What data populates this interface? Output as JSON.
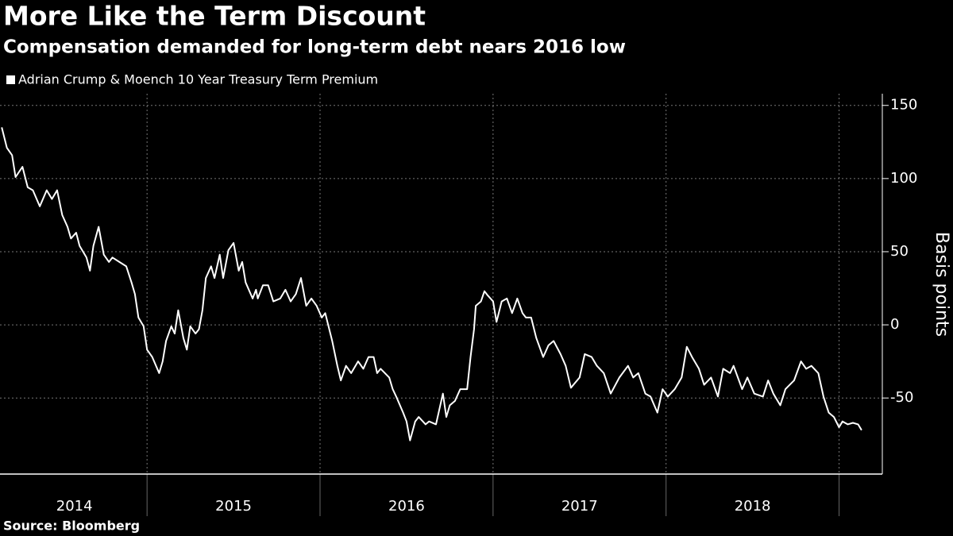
{
  "chart_data": {
    "type": "line",
    "title": "More Like the Term Discount",
    "subtitle": "Compensation demanded for long-term debt nears 2016 low",
    "y_axis_label": "Basis points",
    "source": "Source: Bloomberg",
    "series": [
      {
        "name": "Adrian Crump & Moench 10 Year Treasury Term Premium",
        "color": "#ffffff",
        "values": [
          135,
          121,
          116,
          101,
          108,
          94,
          92,
          81,
          92,
          86,
          92,
          75,
          67,
          59,
          63,
          54,
          46,
          37,
          54,
          67,
          48,
          43,
          46,
          43,
          40,
          29,
          21,
          5,
          -1,
          -17,
          -22,
          -33,
          -25,
          -11,
          -1,
          -6,
          10,
          -9,
          -17,
          -1,
          -6,
          -3,
          10,
          32,
          40,
          32,
          48,
          32,
          51,
          56,
          37,
          43,
          29,
          18,
          24,
          18,
          27,
          27,
          16,
          18,
          24,
          16,
          21,
          32,
          13,
          18,
          13,
          5,
          8,
          -11,
          -28,
          -38,
          -28,
          -33,
          -25,
          -30,
          -22,
          -22,
          -33,
          -30,
          -36,
          -44,
          -49,
          -60,
          -66,
          -79,
          -66,
          -63,
          -68,
          -66,
          -68,
          -47,
          -63,
          -55,
          -52,
          -44,
          -44,
          -22,
          -3,
          13,
          16,
          23,
          20,
          16,
          2,
          16,
          18,
          8,
          18,
          8,
          5,
          5,
          -9,
          -22,
          -14,
          -11,
          -20,
          -28,
          -43,
          -36,
          -20,
          -22,
          -28,
          -33,
          -47,
          -36,
          -28,
          -36,
          -33,
          -47,
          -49,
          -60,
          -44,
          -49,
          -44,
          -36,
          -15,
          -22,
          -30,
          -41,
          -36,
          -49,
          -30,
          -33,
          -28,
          -44,
          -36,
          -47,
          -49,
          -38,
          -47,
          -55,
          -44,
          -38,
          -25,
          -30,
          -28,
          -33,
          -49,
          -60,
          -63,
          -70,
          -66,
          -68,
          -67,
          -68,
          -72
        ]
      }
    ],
    "x": [
      2014.16,
      2014.19,
      2014.22,
      2014.24,
      2014.28,
      2014.31,
      2014.34,
      2014.38,
      2014.42,
      2014.45,
      2014.48,
      2014.51,
      2014.54,
      2014.56,
      2014.59,
      2014.61,
      2014.65,
      2014.67,
      2014.69,
      2014.72,
      2014.75,
      2014.78,
      2014.8,
      2014.84,
      2014.88,
      2014.91,
      2014.93,
      2014.95,
      2014.98,
      2015.0,
      2015.03,
      2015.07,
      2015.09,
      2015.11,
      2015.14,
      2015.16,
      2015.18,
      2015.21,
      2015.23,
      2015.25,
      2015.28,
      2015.3,
      2015.32,
      2015.34,
      2015.37,
      2015.39,
      2015.42,
      2015.44,
      2015.47,
      2015.5,
      2015.53,
      2015.55,
      2015.57,
      2015.61,
      2015.63,
      2015.64,
      2015.67,
      2015.7,
      2015.73,
      2015.77,
      2015.8,
      2015.83,
      2015.86,
      2015.89,
      2015.92,
      2015.95,
      2015.98,
      2016.01,
      2016.03,
      2016.07,
      2016.1,
      2016.12,
      2016.15,
      2016.18,
      2016.22,
      2016.25,
      2016.28,
      2016.31,
      2016.33,
      2016.35,
      2016.4,
      2016.42,
      2016.44,
      2016.48,
      2016.5,
      2016.52,
      2016.55,
      2016.57,
      2016.61,
      2016.63,
      2016.67,
      2016.71,
      2016.73,
      2016.75,
      2016.78,
      2016.81,
      2016.85,
      2016.87,
      2016.89,
      2016.9,
      2016.93,
      2016.95,
      2016.97,
      2017.0,
      2017.02,
      2017.05,
      2017.08,
      2017.11,
      2017.14,
      2017.17,
      2017.19,
      2017.22,
      2017.25,
      2017.29,
      2017.32,
      2017.35,
      2017.39,
      2017.42,
      2017.45,
      2017.5,
      2017.53,
      2017.57,
      2017.6,
      2017.64,
      2017.68,
      2017.73,
      2017.78,
      2017.81,
      2017.84,
      2017.88,
      2017.91,
      2017.95,
      2017.98,
      2018.01,
      2018.05,
      2018.09,
      2018.12,
      2018.15,
      2018.19,
      2018.22,
      2018.26,
      2018.3,
      2018.33,
      2018.37,
      2018.39,
      2018.44,
      2018.47,
      2018.51,
      2018.56,
      2018.59,
      2018.62,
      2018.66,
      2018.69,
      2018.74,
      2018.78,
      2018.81,
      2018.84,
      2018.88,
      2018.91,
      2018.94,
      2018.97,
      2019.0,
      2019.02,
      2019.05,
      2019.08,
      2019.11,
      2019.13
    ],
    "xlim": [
      2014.15,
      2019.25
    ],
    "xticks": [
      {
        "value": 2014.58,
        "label": "2014"
      },
      {
        "value": 2015.5,
        "label": "2015"
      },
      {
        "value": 2016.5,
        "label": "2016"
      },
      {
        "value": 2017.5,
        "label": "2017"
      },
      {
        "value": 2018.5,
        "label": "2018"
      }
    ],
    "xgrid": [
      2015,
      2016,
      2017,
      2018,
      2019
    ],
    "ylim": [
      -102,
      158
    ],
    "yticks": [
      150,
      100,
      50,
      0,
      -50
    ],
    "grid": true,
    "y_axis_side": "right"
  }
}
